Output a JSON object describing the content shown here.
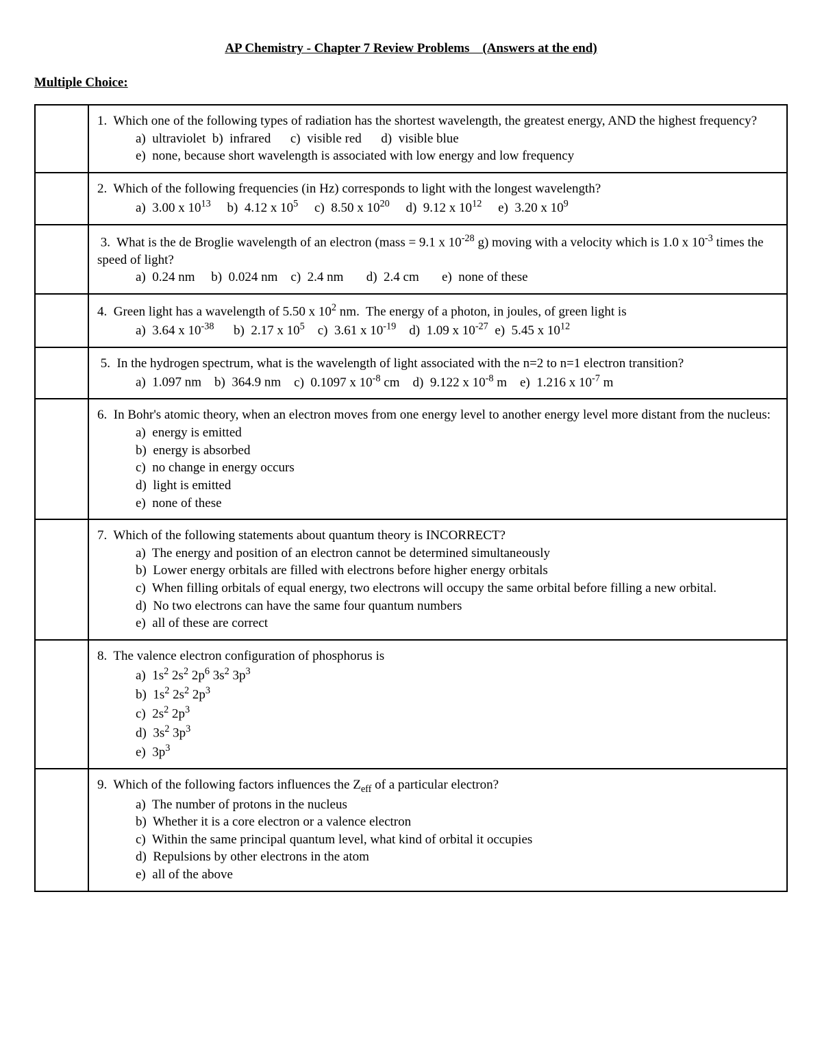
{
  "title": "AP Chemistry - Chapter 7 Review Problems    (Answers at the end)",
  "section_heading": "Multiple Choice:",
  "questions": {
    "q1": {
      "prompt": "1.  Which one of the following types of radiation has the shortest wavelength, the greatest energy, AND the highest frequency?",
      "a": "a)  ultraviolet",
      "b": "b)  infrared",
      "c": "c)  visible red",
      "d": "d)  visible blue",
      "e": "e)  none, because short wavelength is associated with low energy and low frequency"
    },
    "q2": {
      "prompt": "2.  Which of the following frequencies (in Hz) corresponds to light with the longest wavelength?",
      "a": "a)  3.00 x 10",
      "a_exp": "13",
      "b": "b)  4.12 x 10",
      "b_exp": "5",
      "c": "c)  8.50 x 10",
      "c_exp": "20",
      "d": "d)  9.12 x 10",
      "d_exp": "12",
      "e": "e)  3.20 x 10",
      "e_exp": "9"
    },
    "q3": {
      "prompt_pre": " 3.  What is the de Broglie wavelength of an electron (mass = 9.1 x 10",
      "prompt_exp1": "-28",
      "prompt_mid": " g) moving with a velocity which is 1.0 x 10",
      "prompt_exp2": "-3",
      "prompt_post": " times the speed of light?",
      "a": "a)  0.24 nm",
      "b": "b)  0.024 nm",
      "c": "c)  2.4 nm",
      "d": "d)  2.4 cm",
      "e": "e)  none of these"
    },
    "q4": {
      "prompt_pre": "4.  Green light has a wavelength of 5.50 x 10",
      "prompt_exp": "2",
      "prompt_post": " nm.  The energy of a photon, in joules, of green light is",
      "a": "a)  3.64 x 10",
      "a_exp": "-38",
      "b": "b)  2.17 x 10",
      "b_exp": "5",
      "c": "c)  3.61 x 10",
      "c_exp": "-19",
      "d": "d)  1.09 x 10",
      "d_exp": "-27",
      "e": "e)  5.45 x 10",
      "e_exp": "12"
    },
    "q5": {
      "prompt": " 5.  In the hydrogen spectrum, what is the wavelength of light associated with the n=2 to n=1 electron transition?",
      "a": "a)  1.097 nm",
      "b": "b)  364.9 nm",
      "c_pre": "c)  0.1097 x 10",
      "c_exp": "-8",
      "c_post": " cm",
      "d_pre": "d)  9.122 x 10",
      "d_exp": "-8",
      "d_post": " m",
      "e_pre": "e)  1.216 x 10",
      "e_exp": "-7",
      "e_post": " m"
    },
    "q6": {
      "prompt": "6.  In Bohr's atomic theory, when an electron moves from one energy level to another energy level more distant from the nucleus:",
      "a": "a)  energy is emitted",
      "b": "b)  energy is absorbed",
      "c": "c)  no change in energy occurs",
      "d": "d)  light is emitted",
      "e": "e)  none of these"
    },
    "q7": {
      "prompt": "7.  Which of the following statements about quantum theory is INCORRECT?",
      "a": "a)  The energy and position of an electron cannot be determined simultaneously",
      "b": "b)  Lower energy orbitals are filled with electrons before higher energy orbitals",
      "c": "c)  When filling orbitals of equal energy, two electrons will occupy the same orbital before filling a new orbital.",
      "d": "d)  No two electrons can have the same four quantum numbers",
      "e": "e)  all of these are correct"
    },
    "q8": {
      "prompt": "8.  The valence electron configuration of phosphorus is",
      "a_parts": [
        "a)  1s",
        "2",
        " 2s",
        "2",
        " 2p",
        "6",
        " 3s",
        "2",
        " 3p",
        "3"
      ],
      "b_parts": [
        "b)  1s",
        "2",
        " 2s",
        "2",
        " 2p",
        "3"
      ],
      "c_parts": [
        "c)  2s",
        "2",
        " 2p",
        "3"
      ],
      "d_parts": [
        "d)  3s",
        "2",
        " 3p",
        "3"
      ],
      "e_parts": [
        "e)  3p",
        "3"
      ]
    },
    "q9": {
      "prompt_pre": "9.  Which of the following factors influences the Z",
      "prompt_sub": "eff",
      "prompt_post": " of a particular electron?",
      "a": "a)  The number of protons in the nucleus",
      "b": "b)  Whether it is a core electron or a valence electron",
      "c": "c)  Within the same principal quantum level, what kind of orbital it occupies",
      "d": "d)  Repulsions by other electrons in the atom",
      "e": "e)  all of the above"
    }
  }
}
